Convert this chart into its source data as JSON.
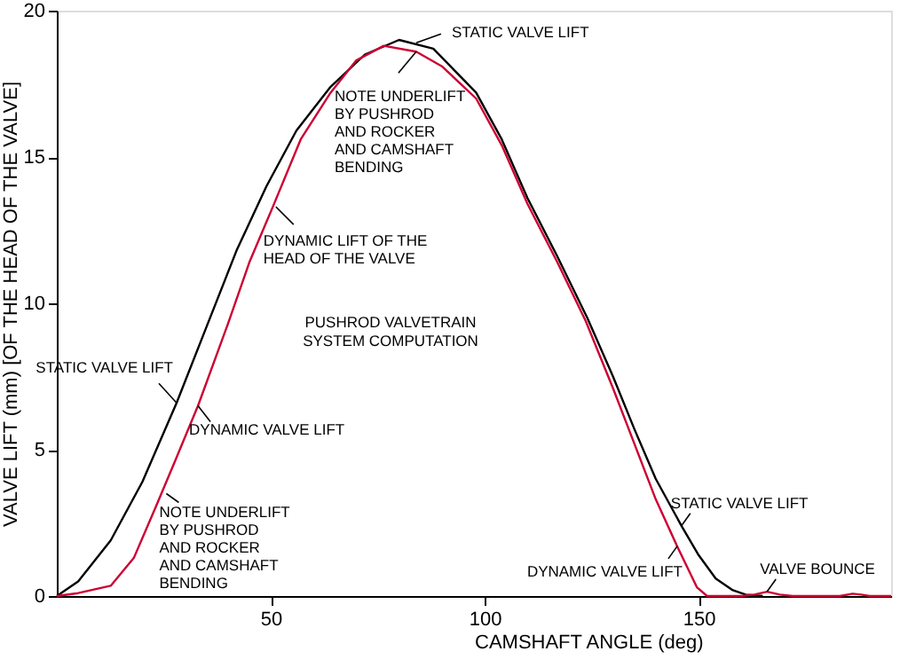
{
  "chart_data": {
    "type": "line",
    "xlabel": "CAMSHAFT ANGLE (deg)",
    "ylabel": "VALVE LIFT (mm) [OF THE HEAD OF THE VALVE]",
    "xlim": [
      0,
      195
    ],
    "ylim": [
      0,
      20
    ],
    "xticks": [
      50,
      100,
      150
    ],
    "yticks": [
      0,
      5,
      10,
      15,
      20
    ],
    "marker": "none",
    "line_style": "solid",
    "series": [
      {
        "color": "#000000",
        "x": [
          0,
          5,
          12.6,
          20,
          28,
          35,
          42,
          49,
          56,
          64,
          72,
          80,
          88,
          98,
          104,
          110,
          117,
          124,
          130,
          135,
          140,
          146,
          150,
          154,
          158,
          161,
          165
        ],
        "values": [
          0,
          0.5,
          1.9,
          3.9,
          6.6,
          9.2,
          11.8,
          14,
          15.9,
          17.4,
          18.5,
          19,
          18.7,
          17.2,
          15.6,
          13.6,
          11.6,
          9.5,
          7.5,
          5.7,
          4,
          2.4,
          1.4,
          0.6,
          0.2,
          0.05,
          0
        ]
      },
      {
        "color": "#cc0033",
        "x": [
          0,
          5,
          12.6,
          18,
          23,
          27.6,
          33,
          40,
          45,
          50.5,
          57,
          64,
          70,
          76.4,
          84,
          90,
          98,
          104,
          110,
          117,
          123.6,
          130,
          135,
          140,
          145,
          149.6,
          152,
          160,
          163,
          166,
          169,
          172,
          183,
          186,
          188,
          190,
          195
        ],
        "values": [
          0,
          0.1,
          0.35,
          1.3,
          3,
          4.6,
          6.5,
          9.3,
          11.4,
          13.3,
          15.6,
          17.2,
          18.3,
          18.8,
          18.6,
          18.1,
          17,
          15.4,
          13.4,
          11.4,
          9.4,
          7.1,
          5.2,
          3.3,
          1.7,
          0.3,
          0,
          0,
          0.05,
          0.15,
          0.05,
          0,
          0,
          0.08,
          0.05,
          0,
          0
        ]
      }
    ],
    "annotations": [
      {
        "text": "STATIC VALVE LIFT",
        "x": 84,
        "y": 18.9
      },
      {
        "text": "NOTE UNDERLIFT\nBY PUSHROD\nAND ROCKER\nAND CAMSHAFT\nBENDING",
        "x": 84,
        "y": 18.6
      },
      {
        "text": "DYNAMIC LIFT OF THE\nHEAD OF THE VALVE",
        "x": 51.2,
        "y": 13.3
      },
      {
        "text": "STATIC VALVE LIFT",
        "x": 28,
        "y": 6.6
      },
      {
        "text": "DYNAMIC VALVE LIFT",
        "x": 33,
        "y": 6.5
      },
      {
        "text": "NOTE UNDERLIFT\nBY PUSHROD\nAND ROCKER\nAND CAMSHAFT\nBENDING",
        "x": 25.6,
        "y": 3.5
      },
      "PUSHROD VALVETRAIN\nSYSTEM COMPUTATION",
      {
        "text": "STATIC VALVE LIFT",
        "x": 146,
        "y": 2.4
      },
      {
        "text": "DYNAMIC VALVE LIFT",
        "x": 145,
        "y": 1.7
      },
      {
        "text": "VALVE BOUNCE",
        "x": 166,
        "y": 0.15
      }
    ]
  }
}
